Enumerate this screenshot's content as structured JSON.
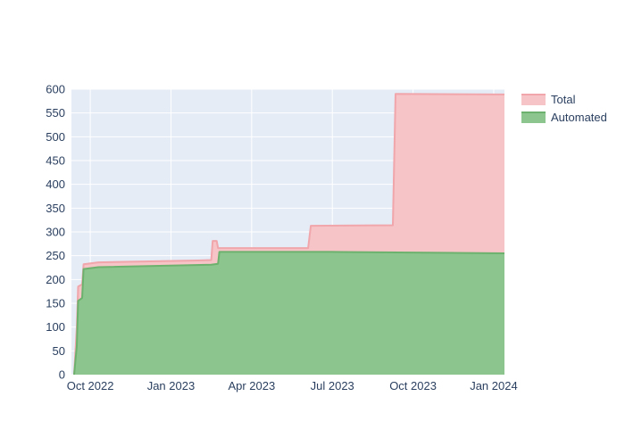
{
  "legend": {
    "items": [
      {
        "label": "Total",
        "color": "#f6c3c6",
        "border": "#f0a6ab"
      },
      {
        "label": "Automated",
        "color": "#8cc58d",
        "border": "#6cb26e"
      }
    ]
  },
  "chart_data": {
    "type": "area",
    "title": "",
    "xlabel": "",
    "ylabel": "",
    "x_axis": {
      "unit": "months-since-Oct-2022",
      "ticks": [
        {
          "label": "Oct 2022",
          "x": 0
        },
        {
          "label": "Jan 2023",
          "x": 3
        },
        {
          "label": "Apr 2023",
          "x": 6
        },
        {
          "label": "Jul 2023",
          "x": 9
        },
        {
          "label": "Oct 2023",
          "x": 12
        },
        {
          "label": "Jan 2024",
          "x": 15
        }
      ]
    },
    "y_axis": {
      "ticks": [
        0,
        50,
        100,
        150,
        200,
        250,
        300,
        350,
        400,
        450,
        500,
        550,
        600
      ]
    },
    "xlim": [
      -0.7,
      15.4
    ],
    "ylim": [
      0,
      600
    ],
    "grid": true,
    "legend_position": "right",
    "plot_bg": "#e5ecf6",
    "grid_color": "#ffffff",
    "text_color": "#2a3f5f",
    "series": [
      {
        "name": "Total",
        "fill": "#f6c3c6",
        "line": "#f0a6ab",
        "points": [
          [
            -0.6,
            0
          ],
          [
            -0.5,
            100
          ],
          [
            -0.45,
            185
          ],
          [
            -0.3,
            190
          ],
          [
            -0.25,
            232
          ],
          [
            0.3,
            236
          ],
          [
            4.0,
            240
          ],
          [
            4.5,
            241
          ],
          [
            4.55,
            281
          ],
          [
            4.7,
            281
          ],
          [
            4.75,
            266
          ],
          [
            8.1,
            266
          ],
          [
            8.2,
            313
          ],
          [
            11.25,
            314
          ],
          [
            11.35,
            590
          ],
          [
            15.4,
            589
          ]
        ]
      },
      {
        "name": "Automated",
        "fill": "#8cc58d",
        "line": "#6cb26e",
        "points": [
          [
            -0.6,
            0
          ],
          [
            -0.5,
            60
          ],
          [
            -0.45,
            155
          ],
          [
            -0.3,
            161
          ],
          [
            -0.25,
            222
          ],
          [
            0.3,
            226
          ],
          [
            4.5,
            231
          ],
          [
            4.75,
            233
          ],
          [
            4.8,
            258
          ],
          [
            9.0,
            258
          ],
          [
            15.4,
            255
          ]
        ]
      }
    ]
  }
}
